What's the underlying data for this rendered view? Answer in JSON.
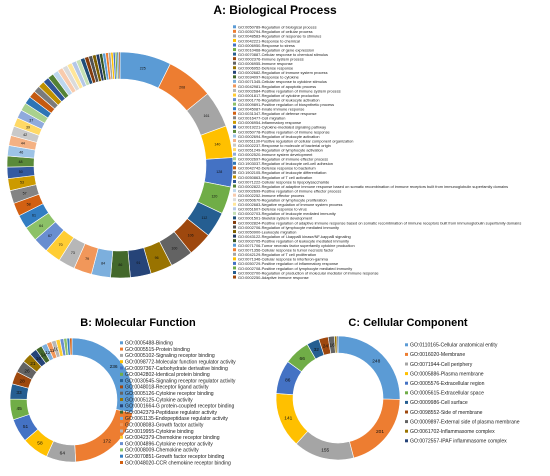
{
  "chart_data": [
    {
      "type": "pie",
      "variant": "donut",
      "title": "A: Biological Process",
      "legend_placement": "right",
      "slices": [
        {
          "label": "GO:0050789-Regulation of biological process",
          "value": 225,
          "color": "#5b9bd5"
        },
        {
          "label": "GO:0050794-Regulation of cellular process",
          "value": 208,
          "color": "#ed7d31"
        },
        {
          "label": "GO:0048583-Regulation of response to stimulus",
          "value": 161,
          "color": "#a5a5a5"
        },
        {
          "label": "GO:0042221-Response to chemical",
          "value": 140,
          "color": "#ffc000"
        },
        {
          "label": "GO:0006950-Response to stress",
          "value": 128,
          "color": "#4472c4"
        },
        {
          "label": "GO:0010468-Regulation of gene expression",
          "value": 120,
          "color": "#70ad47"
        },
        {
          "label": "GO:0070887-Cellular response to chemical stimulus",
          "value": 112,
          "color": "#255e91"
        },
        {
          "label": "GO:0002376-Immune system process",
          "value": 106,
          "color": "#9e480e"
        },
        {
          "label": "GO:0006955-Immune response",
          "value": 100,
          "color": "#636363"
        },
        {
          "label": "GO:0006952-Defense response",
          "value": 96,
          "color": "#997300"
        },
        {
          "label": "GO:0002682-Regulation of immune system process",
          "value": 91,
          "color": "#264478"
        },
        {
          "label": "GO:0034097-Response to cytokine",
          "value": 86,
          "color": "#43682b"
        },
        {
          "label": "GO:0071345-Cellular response to cytokine stimulus",
          "value": 84,
          "color": "#7cafdd"
        },
        {
          "label": "GO:0042981-Regulation of apoptotic process",
          "value": 79,
          "color": "#f1975a"
        },
        {
          "label": "GO:0002684-Positive regulation of immune system process",
          "value": 73,
          "color": "#b7b7b7"
        },
        {
          "label": "GO:0001817-Regulation of cytokine production",
          "value": 70,
          "color": "#ffcd33"
        },
        {
          "label": "GO:0001776-Regulation of leukocyte activation",
          "value": 67,
          "color": "#698ed0"
        },
        {
          "label": "GO:0009891-Positive regulation of biosynthetic process",
          "value": 64,
          "color": "#8cc168"
        },
        {
          "label": "GO:0045087-Innate immune response",
          "value": 61,
          "color": "#327dc2"
        },
        {
          "label": "GO:0031347-Regulation of defense response",
          "value": 58,
          "color": "#d26012"
        },
        {
          "label": "GO:0016477-Cell migration",
          "value": 57,
          "color": "#848484"
        },
        {
          "label": "GO:0006954-Inflammatory response",
          "value": 53,
          "color": "#cc9a00"
        },
        {
          "label": "GO:0019221-Cytokine-mediated signaling pathway",
          "value": 50,
          "color": "#335aa1"
        },
        {
          "label": "GO:0050778-Positive regulation of immune response",
          "value": 48,
          "color": "#5a8a39"
        },
        {
          "label": "GO:0002694-Regulation of leukocyte activation",
          "value": 46,
          "color": "#9dc3e6"
        },
        {
          "label": "GO:0051130-Positive regulation of cellular component organization",
          "value": 44,
          "color": "#f4b183"
        },
        {
          "label": "GO:0002237-Response to molecule of bacterial origin",
          "value": 42,
          "color": "#c9c9c9"
        },
        {
          "label": "GO:0051249-Regulation of lymphocyte activation",
          "value": 39,
          "color": "#ffd966"
        },
        {
          "label": "GO:0002520-Immune system development",
          "value": 37,
          "color": "#8faadc"
        },
        {
          "label": "GO:0002697-Regulation of immune effector process",
          "value": 35,
          "color": "#a9d18e"
        },
        {
          "label": "GO:1903037-Regulation of leukocyte cell-cell adhesion",
          "value": 33,
          "color": "#2e75b6"
        },
        {
          "label": "GO:0042742-Defense response to bacterium",
          "value": 31,
          "color": "#c55a11"
        },
        {
          "label": "GO:1902105-Regulation of leukocyte differentiation",
          "value": 29,
          "color": "#7b7b7b"
        },
        {
          "label": "GO:0050863-Regulation of T cell activation",
          "value": 28,
          "color": "#bf9000"
        },
        {
          "label": "GO:0071222-Cellular response to lipopolysaccharide",
          "value": 27,
          "color": "#2f5597"
        },
        {
          "label": "GO:0002822-Regulation of adaptive immune response based on somatic recombination of immune receptors built from immunoglobulin superfamily domains",
          "value": 26,
          "color": "#548235"
        },
        {
          "label": "GO:0002699-Positive regulation of immune effector process",
          "value": 25,
          "color": "#bdd7ee"
        },
        {
          "label": "GO:0002252-Immune effector process",
          "value": 24,
          "color": "#f8cbad"
        },
        {
          "label": "GO:0050670-Regulation of lymphocyte proliferation",
          "value": 23,
          "color": "#dbdbdb"
        },
        {
          "label": "GO:0002683-Negative regulation of immune system process",
          "value": 22,
          "color": "#ffe699"
        },
        {
          "label": "GO:0051607-Defense response to virus",
          "value": 21,
          "color": "#b4c7e7"
        },
        {
          "label": "GO:0002703-Regulation of leukocyte mediated immunity",
          "value": 20,
          "color": "#c5e0b4"
        },
        {
          "label": "GO:0001501-Skeletal system development",
          "value": 19,
          "color": "#1f4e79"
        },
        {
          "label": "GO:0002824-Positive regulation of adaptive immune response based on somatic recombination of immune receptors built from immunoglobulin superfamily domains",
          "value": 18,
          "color": "#843c0c"
        },
        {
          "label": "GO:0002706-Regulation of lymphocyte mediated immunity",
          "value": 17,
          "color": "#525252"
        },
        {
          "label": "GO:0050900-Leukocyte migration",
          "value": 16,
          "color": "#7f6000"
        },
        {
          "label": "GO:0043122-Regulation of I-kappaB kinase/NF-kappaB signaling",
          "value": 15,
          "color": "#203864"
        },
        {
          "label": "GO:0002705-Positive regulation of leukocyte mediated immunity",
          "value": 14,
          "color": "#385723"
        },
        {
          "label": "GO:0071706-Tumor necrosis factor superfamily cytokine production",
          "value": 13,
          "color": "#5b9bd5"
        },
        {
          "label": "GO:0071356-Cellular response to tumor necrosis factor",
          "value": 12,
          "color": "#ed7d31"
        },
        {
          "label": "GO:0042129-Regulation of T cell proliferation",
          "value": 11,
          "color": "#a5a5a5"
        },
        {
          "label": "GO:0071346-Cellular response to interferon-gamma",
          "value": 10,
          "color": "#ffc000"
        },
        {
          "label": "GO:0050729-Positive regulation of inflammatory response",
          "value": 9,
          "color": "#4472c4"
        },
        {
          "label": "GO:0002708-Positive regulation of lymphocyte mediated immunity",
          "value": 8,
          "color": "#70ad47"
        },
        {
          "label": "GO:0002700-Regulation of production of molecular mediator of immune response",
          "value": 7,
          "color": "#255e91"
        },
        {
          "label": "GO:0002250-Adaptive immune response",
          "value": 6,
          "color": "#9e480e"
        }
      ]
    },
    {
      "type": "pie",
      "variant": "donut",
      "title": "B: Molecular Function",
      "legend_placement": "right",
      "slices": [
        {
          "label": "GO:0005488-Binding",
          "value": 236,
          "color": "#5b9bd5"
        },
        {
          "label": "GO:0005515-Protein binding",
          "value": 172,
          "color": "#ed7d31"
        },
        {
          "label": "GO:0005102-Signaling receptor binding",
          "value": 64,
          "color": "#a5a5a5"
        },
        {
          "label": "GO:0098772-Molecular function regulator activity",
          "value": 58,
          "color": "#ffc000"
        },
        {
          "label": "GO:0097367-Carbohydrate derivative binding",
          "value": 51,
          "color": "#4472c4"
        },
        {
          "label": "GO:0042802-Identical protein binding",
          "value": 45,
          "color": "#70ad47"
        },
        {
          "label": "GO:0030545-Signaling receptor regulator activity",
          "value": 33,
          "color": "#255e91"
        },
        {
          "label": "GO:0048018-Receptor ligand activity",
          "value": 28,
          "color": "#9e480e"
        },
        {
          "label": "GO:0005126-Cytokine receptor binding",
          "value": 26,
          "color": "#636363"
        },
        {
          "label": "GO:0005125-Cytokine activity",
          "value": 21,
          "color": "#997300"
        },
        {
          "label": "GO:0001664-G protein-coupled receptor binding",
          "value": 16,
          "color": "#264478"
        },
        {
          "label": "GO:0042379-Peptidase regulator activity",
          "value": 14,
          "color": "#43682b"
        },
        {
          "label": "GO:0061135-Endopeptidase regulator activity",
          "value": 12,
          "color": "#7cafdd"
        },
        {
          "label": "GO:0008083-Growth factor activity",
          "value": 11,
          "color": "#f1975a"
        },
        {
          "label": "GO:0019955-Cytokine binding",
          "value": 10,
          "color": "#b7b7b7"
        },
        {
          "label": "GO:0042379-Chemokine receptor binding",
          "value": 9,
          "color": "#ffcd33"
        },
        {
          "label": "GO:0004896-Cytokine receptor activity",
          "value": 8,
          "color": "#698ed0"
        },
        {
          "label": "GO:0008009-Chemokine activity",
          "value": 7,
          "color": "#8cc168"
        },
        {
          "label": "GO:0070851-Growth factor receptor binding",
          "value": 6,
          "color": "#327dc2"
        },
        {
          "label": "GO:0048020-CCR chemokine receptor binding",
          "value": 5,
          "color": "#d26012"
        }
      ]
    },
    {
      "type": "pie",
      "variant": "donut",
      "title": "C: Cellular Component",
      "legend_placement": "right",
      "slices": [
        {
          "label": "GO:0110165-Cellular anatomical entity",
          "value": 248,
          "color": "#5b9bd5"
        },
        {
          "label": "GO:0016020-Membrane",
          "value": 201,
          "color": "#ed7d31"
        },
        {
          "label": "GO:0071944-Cell periphery",
          "value": 155,
          "color": "#a5a5a5"
        },
        {
          "label": "GO:0005886-Plasma membrane",
          "value": 141,
          "color": "#ffc000"
        },
        {
          "label": "GO:0005576-Extracellular region",
          "value": 86,
          "color": "#4472c4"
        },
        {
          "label": "GO:0005615-Extracellular space",
          "value": 66,
          "color": "#70ad47"
        },
        {
          "label": "GO:0009986-Cell surface",
          "value": 32,
          "color": "#255e91"
        },
        {
          "label": "GO:0098552-Side of membrane",
          "value": 24,
          "color": "#9e480e"
        },
        {
          "label": "GO:0009897-External side of plasma membrane",
          "value": 16,
          "color": "#636363"
        },
        {
          "label": "GO:0061702-Inflammasome complex",
          "value": 6,
          "color": "#997300"
        },
        {
          "label": "GO:0072557-IPAF inflammasome complex",
          "value": 3,
          "color": "#264478"
        }
      ]
    }
  ]
}
